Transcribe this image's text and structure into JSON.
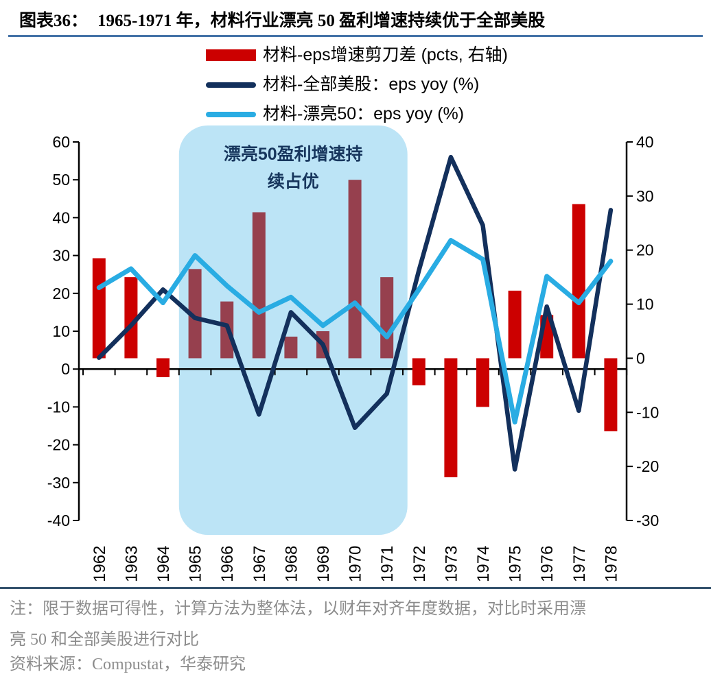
{
  "page": {
    "title_prefix": "图表36：",
    "title_text": "1965-1971 年，材料行业漂亮 50 盈利增速持续优于全部美股"
  },
  "legend": {
    "items": [
      {
        "label": "材料-eps增速剪刀差 (pcts, 右轴)",
        "swatch": "bar",
        "color": "#cc0000"
      },
      {
        "label": "材料-全部美股：eps yoy (%)",
        "swatch": "line",
        "color": "#13305c"
      },
      {
        "label": "材料-漂亮50：eps yoy (%)",
        "swatch": "line",
        "color": "#29ace3"
      }
    ]
  },
  "chart_data": {
    "type": "composite",
    "title": "1965-1971 年，材料行业漂亮 50 盈利增速持续优于全部美股",
    "categories": [
      1962,
      1963,
      1964,
      1965,
      1966,
      1967,
      1968,
      1969,
      1970,
      1971,
      1972,
      1973,
      1974,
      1975,
      1976,
      1977,
      1978
    ],
    "series": [
      {
        "name": "材料-eps增速剪刀差 (pcts, 右轴)",
        "type": "bar",
        "axis": "right",
        "color": "#cc0000",
        "color_in_highlight": "#96404e",
        "values": [
          18.5,
          15,
          -3.5,
          16.5,
          10.5,
          27,
          4,
          5,
          33,
          15,
          -5,
          -22,
          -9,
          12.5,
          8,
          28.5,
          -13.5
        ]
      },
      {
        "name": "材料-全部美股：eps yoy (%)",
        "type": "line",
        "axis": "left",
        "color": "#13305c",
        "values": [
          3,
          11.5,
          21,
          13.5,
          11.5,
          -12,
          15,
          6.5,
          -15.5,
          -6.5,
          26,
          56,
          38,
          -26.5,
          16.5,
          -11,
          42
        ]
      },
      {
        "name": "材料-漂亮50：eps yoy (%)",
        "type": "line",
        "axis": "left",
        "color": "#29ace3",
        "values": [
          21.5,
          26.5,
          17.5,
          30,
          22,
          15,
          19,
          11.5,
          17.5,
          8.5,
          21,
          34,
          29,
          -14,
          24.5,
          17.5,
          28.5
        ]
      }
    ],
    "left_axis": {
      "min": -40,
      "max": 60,
      "step": 10,
      "ticks": [
        60,
        50,
        40,
        30,
        20,
        10,
        0,
        -10,
        -20,
        -30,
        -40
      ]
    },
    "right_axis": {
      "min": -30,
      "max": 40,
      "step": 10,
      "ticks": [
        40,
        30,
        20,
        10,
        0,
        -10,
        -20,
        -30
      ]
    },
    "highlight": {
      "from_year": 1965,
      "to_year": 1971,
      "fill": "#bce4f6",
      "label_lines": [
        "漂亮50盈利增速持",
        "续占优"
      ],
      "label_color": "#17365d"
    },
    "grid": false,
    "legend_position": "top"
  },
  "footer": {
    "note_lines": [
      "注：限于数据可得性，计算方法为整体法，以财年对齐年度数据，对比时采用漂",
      "亮 50 和全部美股进行对比"
    ],
    "source": "资料来源：Compustat，华泰研究"
  }
}
